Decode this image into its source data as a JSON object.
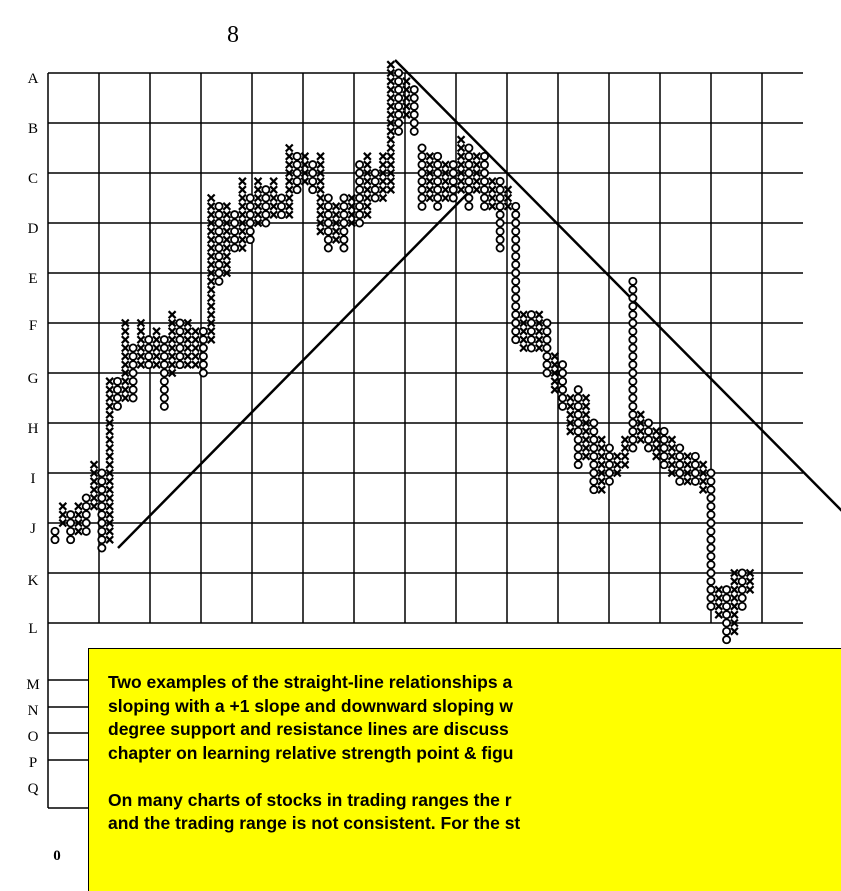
{
  "chart_data": {
    "type": "point_and_figure",
    "top_label": "8",
    "bottom_label": "0",
    "row_labels": [
      "A",
      "B",
      "C",
      "D",
      "E",
      "F",
      "G",
      "H",
      "I",
      "J",
      "K",
      "L",
      "M",
      "N",
      "O",
      "P",
      "Q"
    ],
    "columns": [
      {
        "type": "O",
        "high": 17,
        "low": 16
      },
      {
        "type": "X",
        "high": 20,
        "low": 18
      },
      {
        "type": "O",
        "high": 19,
        "low": 16
      },
      {
        "type": "X",
        "high": 20,
        "low": 17
      },
      {
        "type": "O",
        "high": 21,
        "low": 17
      },
      {
        "type": "X",
        "high": 25,
        "low": 20
      },
      {
        "type": "O",
        "high": 24,
        "low": 15
      },
      {
        "type": "X",
        "high": 35,
        "low": 16
      },
      {
        "type": "O",
        "high": 35,
        "low": 32
      },
      {
        "type": "X",
        "high": 42,
        "low": 33
      },
      {
        "type": "O",
        "high": 39,
        "low": 33
      },
      {
        "type": "X",
        "high": 42,
        "low": 37
      },
      {
        "type": "O",
        "high": 40,
        "low": 37
      },
      {
        "type": "X",
        "high": 41,
        "low": 37
      },
      {
        "type": "O",
        "high": 40,
        "low": 32
      },
      {
        "type": "X",
        "high": 43,
        "low": 36
      },
      {
        "type": "O",
        "high": 42,
        "low": 37
      },
      {
        "type": "X",
        "high": 42,
        "low": 37
      },
      {
        "type": "X",
        "high": 41,
        "low": 37
      },
      {
        "type": "O",
        "high": 41,
        "low": 36
      },
      {
        "type": "X",
        "high": 57,
        "low": 40
      },
      {
        "type": "O",
        "high": 56,
        "low": 47
      },
      {
        "type": "X",
        "high": 56,
        "low": 48
      },
      {
        "type": "O",
        "high": 55,
        "low": 51
      },
      {
        "type": "X",
        "high": 59,
        "low": 51
      },
      {
        "type": "O",
        "high": 57,
        "low": 52
      },
      {
        "type": "X",
        "high": 59,
        "low": 54
      },
      {
        "type": "O",
        "high": 58,
        "low": 54
      },
      {
        "type": "X",
        "high": 59,
        "low": 55
      },
      {
        "type": "O",
        "high": 57,
        "low": 55
      },
      {
        "type": "X",
        "high": 63,
        "low": 55
      },
      {
        "type": "O",
        "high": 62,
        "low": 58
      },
      {
        "type": "X",
        "high": 62,
        "low": 59
      },
      {
        "type": "O",
        "high": 61,
        "low": 58
      },
      {
        "type": "X",
        "high": 62,
        "low": 53
      },
      {
        "type": "O",
        "high": 57,
        "low": 51
      },
      {
        "type": "X",
        "high": 56,
        "low": 52
      },
      {
        "type": "O",
        "high": 57,
        "low": 51
      },
      {
        "type": "X",
        "high": 57,
        "low": 54
      },
      {
        "type": "O",
        "high": 61,
        "low": 54
      },
      {
        "type": "X",
        "high": 62,
        "low": 55
      },
      {
        "type": "O",
        "high": 60,
        "low": 57
      },
      {
        "type": "X",
        "high": 62,
        "low": 57
      },
      {
        "type": "X",
        "high": 73,
        "low": 58
      },
      {
        "type": "O",
        "high": 72,
        "low": 65
      },
      {
        "type": "X",
        "high": 71,
        "low": 67
      },
      {
        "type": "O",
        "high": 70,
        "low": 65
      },
      {
        "type": "O",
        "high": 63,
        "low": 56
      },
      {
        "type": "X",
        "high": 62,
        "low": 57
      },
      {
        "type": "O",
        "high": 62,
        "low": 56
      },
      {
        "type": "X",
        "high": 61,
        "low": 57
      },
      {
        "type": "O",
        "high": 61,
        "low": 57
      },
      {
        "type": "X",
        "high": 64,
        "low": 58
      },
      {
        "type": "O",
        "high": 63,
        "low": 56
      },
      {
        "type": "X",
        "high": 62,
        "low": 58
      },
      {
        "type": "O",
        "high": 62,
        "low": 56
      },
      {
        "type": "X",
        "high": 59,
        "low": 56
      },
      {
        "type": "O",
        "high": 59,
        "low": 51
      },
      {
        "type": "X",
        "high": 58,
        "low": 56
      },
      {
        "type": "O",
        "high": 56,
        "low": 40
      },
      {
        "type": "X",
        "high": 43,
        "low": 39
      },
      {
        "type": "O",
        "high": 43,
        "low": 39
      },
      {
        "type": "X",
        "high": 43,
        "low": 39
      },
      {
        "type": "O",
        "high": 42,
        "low": 36
      },
      {
        "type": "X",
        "high": 38,
        "low": 34
      },
      {
        "type": "O",
        "high": 37,
        "low": 32
      },
      {
        "type": "X",
        "high": 33,
        "low": 29
      },
      {
        "type": "O",
        "high": 34,
        "low": 25
      },
      {
        "type": "X",
        "high": 33,
        "low": 26
      },
      {
        "type": "O",
        "high": 30,
        "low": 22
      },
      {
        "type": "X",
        "high": 28,
        "low": 22
      },
      {
        "type": "O",
        "high": 27,
        "low": 23
      },
      {
        "type": "X",
        "high": 26,
        "low": 24
      },
      {
        "type": "X",
        "high": 28,
        "low": 25
      },
      {
        "type": "O",
        "high": 47,
        "low": 27
      },
      {
        "type": "X",
        "high": 31,
        "low": 28
      },
      {
        "type": "O",
        "high": 30,
        "low": 27
      },
      {
        "type": "X",
        "high": 29,
        "low": 26
      },
      {
        "type": "O",
        "high": 29,
        "low": 25
      },
      {
        "type": "X",
        "high": 28,
        "low": 24
      },
      {
        "type": "O",
        "high": 27,
        "low": 23
      },
      {
        "type": "X",
        "high": 26,
        "low": 23
      },
      {
        "type": "O",
        "high": 26,
        "low": 23
      },
      {
        "type": "X",
        "high": 25,
        "low": 22
      },
      {
        "type": "O",
        "high": 24,
        "low": 8
      },
      {
        "type": "X",
        "high": 10,
        "low": 7
      },
      {
        "type": "O",
        "high": 10,
        "low": 4
      },
      {
        "type": "X",
        "high": 12,
        "low": 5
      },
      {
        "type": "O",
        "high": 12,
        "low": 8
      },
      {
        "type": "X",
        "high": 12,
        "low": 10
      }
    ],
    "note": [
      "Two examples of the straight-line relationships a",
      "sloping with a +1 slope and downward sloping w",
      "degree support and resistance lines are discuss",
      "chapter on learning relative strength point & figu",
      "On many charts of stocks in trading ranges the r",
      "and the trading range is not consistent. For the st"
    ]
  }
}
